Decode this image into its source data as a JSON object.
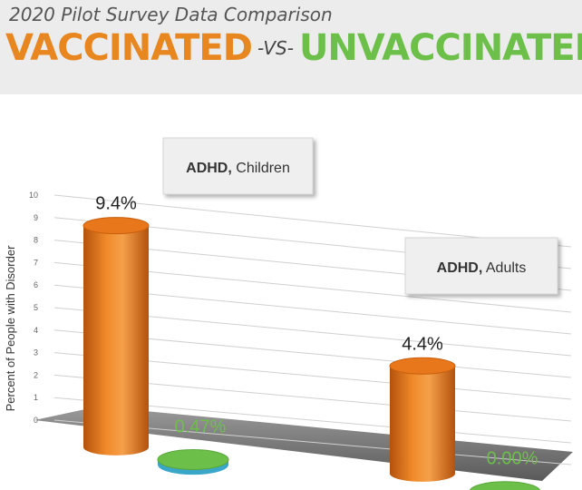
{
  "header": {
    "subtitle": "2020 Pilot Survey Data Comparison",
    "title_left": "VACCINATED",
    "title_vs": "-VS-",
    "title_right": "UNVACCINATED"
  },
  "colors": {
    "vaccinated": "#e8861f",
    "unvaccinated": "#6cc04a",
    "title_orange": "#e8861f",
    "title_green": "#6cc04a"
  },
  "chart_data": {
    "type": "bar",
    "title": "",
    "ylabel": "Percent of People with Disorder",
    "xlabel": "",
    "ylim": [
      0,
      10
    ],
    "yticks": [
      "0",
      "1",
      "2",
      "3",
      "4",
      "5",
      "6",
      "7",
      "8",
      "9",
      "10"
    ],
    "grid": true,
    "groups": [
      {
        "label_bold": "ADHD,",
        "label_rest": " Children",
        "vaccinated": 9.4,
        "vaccinated_label": "9.4%",
        "unvaccinated": 0.47,
        "unvaccinated_label": "0.47%"
      },
      {
        "label_bold": "ADHD,",
        "label_rest": " Adults",
        "vaccinated": 4.4,
        "vaccinated_label": "4.4%",
        "unvaccinated": 0.0,
        "unvaccinated_label": "0.00%"
      }
    ]
  }
}
